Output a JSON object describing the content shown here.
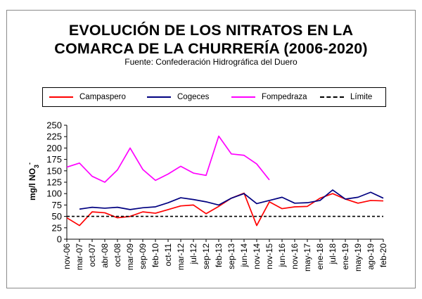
{
  "title_line1": "EVOLUCIÓN DE LOS NITRATOS EN LA",
  "title_line2": "COMARCA DE LA CHURRERÍA (2006-2020)",
  "subtitle": "Fuente: Confederación Hidrográfica del Duero",
  "colors": {
    "Campaspero": "#ff0000",
    "Cogeces": "#000080",
    "Fompedraza": "#ff00ff",
    "Límite": "#000000"
  },
  "chart_data": {
    "type": "line",
    "title": "EVOLUCIÓN DE LOS NITRATOS EN LA COMARCA DE LA CHURRERÍA (2006-2020)",
    "ylabel": "mg/l NO3-",
    "ylabel_main": "mg/l NO",
    "ylabel_sub": "3",
    "ylabel_sup": "-",
    "ylim": [
      0,
      250
    ],
    "yticks": [
      0,
      25,
      50,
      75,
      100,
      125,
      150,
      175,
      200,
      225,
      250
    ],
    "grid": false,
    "legend_position": "top",
    "categories": [
      "nov-06",
      "mar-07",
      "oct-07",
      "abr-08",
      "oct-08",
      "mar-09",
      "sep-09",
      "feb-10",
      "oct-11",
      "mar-12",
      "jul-12",
      "sep-12",
      "feb-13",
      "sep-13",
      "jun-14",
      "nov-14",
      "nov-15",
      "jun-16",
      "nov-16",
      "may-17",
      "ene-18",
      "jul-18",
      "ene-19",
      "may-19",
      "ago-19",
      "feb-20"
    ],
    "series": [
      {
        "name": "Campaspero",
        "style": "solid",
        "values": [
          47,
          30,
          60,
          58,
          47,
          50,
          60,
          57,
          65,
          73,
          75,
          56,
          72,
          90,
          101,
          30,
          82,
          67,
          71,
          72,
          90,
          100,
          88,
          79,
          85,
          84
        ]
      },
      {
        "name": "Cogeces",
        "style": "solid",
        "values": [
          null,
          66,
          70,
          68,
          70,
          65,
          69,
          71,
          80,
          91,
          87,
          82,
          75,
          90,
          100,
          78,
          85,
          92,
          79,
          80,
          85,
          108,
          88,
          92,
          103,
          90
        ]
      },
      {
        "name": "Fompedraza",
        "style": "solid",
        "values": [
          158,
          167,
          138,
          125,
          152,
          200,
          153,
          129,
          143,
          160,
          145,
          140,
          226,
          187,
          184,
          165,
          130,
          null,
          null,
          null,
          null,
          null,
          null,
          null,
          null,
          null
        ]
      },
      {
        "name": "Límite",
        "style": "dashed",
        "values": [
          50,
          50,
          50,
          50,
          50,
          50,
          50,
          50,
          50,
          50,
          50,
          50,
          50,
          50,
          50,
          50,
          50,
          50,
          50,
          50,
          50,
          50,
          50,
          50,
          50,
          50
        ]
      }
    ]
  }
}
